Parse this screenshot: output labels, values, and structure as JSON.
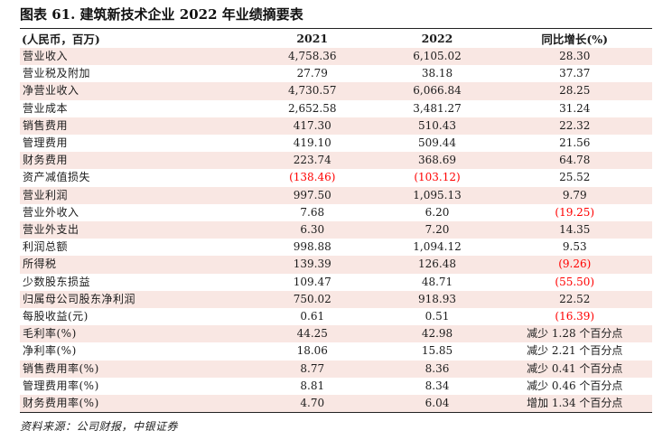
{
  "title": "图表 61. 建筑新技术企业 2022 年业绩摘要表",
  "chart_data": {
    "type": "table",
    "title": "图表 61. 建筑新技术企业 2022 年业绩摘要表",
    "columns": [
      "(人民币，百万)",
      "2021",
      "2022",
      "同比增长(%)"
    ],
    "rows": [
      {
        "label": "营业收入",
        "y2021": "4,758.36",
        "y2022": "6,105.02",
        "yoy": "28.30"
      },
      {
        "label": "营业税及附加",
        "y2021": "27.79",
        "y2022": "38.18",
        "yoy": "37.37"
      },
      {
        "label": "净营业收入",
        "y2021": "4,730.57",
        "y2022": "6,066.84",
        "yoy": "28.25"
      },
      {
        "label": "营业成本",
        "y2021": "2,652.58",
        "y2022": "3,481.27",
        "yoy": "31.24"
      },
      {
        "label": "销售费用",
        "y2021": "417.30",
        "y2022": "510.43",
        "yoy": "22.32"
      },
      {
        "label": "管理费用",
        "y2021": "419.10",
        "y2022": "509.44",
        "yoy": "21.56"
      },
      {
        "label": "财务费用",
        "y2021": "223.74",
        "y2022": "368.69",
        "yoy": "64.78"
      },
      {
        "label": "资产减值损失",
        "y2021": "(138.46)",
        "y2022": "(103.12)",
        "yoy": "25.52"
      },
      {
        "label": "营业利润",
        "y2021": "997.50",
        "y2022": "1,095.13",
        "yoy": "9.79"
      },
      {
        "label": "营业外收入",
        "y2021": "7.68",
        "y2022": "6.20",
        "yoy": "(19.25)"
      },
      {
        "label": "营业外支出",
        "y2021": "6.30",
        "y2022": "7.20",
        "yoy": "14.35"
      },
      {
        "label": "利润总额",
        "y2021": "998.88",
        "y2022": "1,094.12",
        "yoy": "9.53"
      },
      {
        "label": "所得税",
        "y2021": "139.39",
        "y2022": "126.48",
        "yoy": "(9.26)"
      },
      {
        "label": "少数股东损益",
        "y2021": "109.47",
        "y2022": "48.71",
        "yoy": "(55.50)"
      },
      {
        "label": "归属母公司股东净利润",
        "y2021": "750.02",
        "y2022": "918.93",
        "yoy": "22.52"
      },
      {
        "label": "每股收益(元)",
        "y2021": "0.61",
        "y2022": "0.51",
        "yoy": "(16.39)"
      },
      {
        "label": "毛利率(%)",
        "y2021": "44.25",
        "y2022": "42.98",
        "yoy": "减少 1.28 个百分点"
      },
      {
        "label": "净利率(%)",
        "y2021": "18.06",
        "y2022": "15.85",
        "yoy": "减少 2.21 个百分点"
      },
      {
        "label": "销售费用率(%)",
        "y2021": "8.77",
        "y2022": "8.36",
        "yoy": "减少 0.41 个百分点"
      },
      {
        "label": "管理费用率(%)",
        "y2021": "8.81",
        "y2022": "8.34",
        "yoy": "减少 0.46 个百分点"
      },
      {
        "label": "财务费用率(%)",
        "y2021": "4.70",
        "y2022": "6.04",
        "yoy": "增加 1.34 个百分点"
      }
    ]
  },
  "footer": {
    "source": "资料来源：公司财报，中银证券"
  },
  "colors": {
    "stripe_pink": "#f9e7e3",
    "negative_red": "#ff0000",
    "text": "#1c1c1c"
  }
}
